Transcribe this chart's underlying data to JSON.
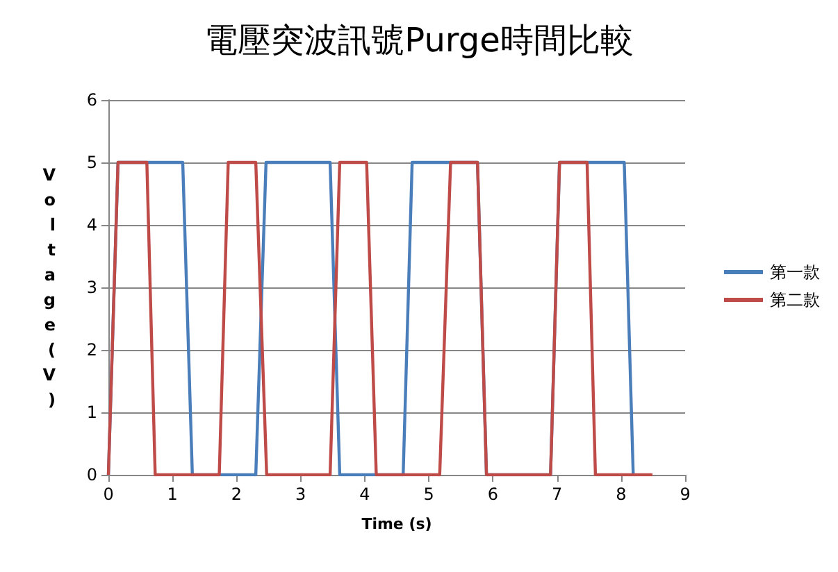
{
  "chart_data": {
    "type": "line",
    "title": "電壓突波訊號Purge時間比較",
    "xlabel": "Time (s)",
    "ylabel": "Voltage(V)",
    "xlim": [
      0,
      9
    ],
    "xticks": [
      0,
      1,
      2,
      3,
      4,
      5,
      6,
      7,
      8,
      9
    ],
    "ylim": [
      0,
      6
    ],
    "yticks": [
      0,
      1,
      2,
      3,
      4,
      5,
      6
    ],
    "grid": "y",
    "legend": "right",
    "marker": "none",
    "line_style": "solid",
    "series": [
      {
        "name": "第一款",
        "color": "#4a7ebb",
        "x": [
          0,
          0.15,
          1.16,
          1.31,
          2.3,
          2.46,
          3.46,
          3.61,
          4.6,
          4.74,
          5.76,
          5.9,
          6.9,
          7.04,
          8.05,
          8.19
        ],
        "values": [
          0,
          5,
          5,
          0,
          0,
          5,
          5,
          0,
          0,
          5,
          5,
          0,
          0,
          5,
          5,
          0
        ]
      },
      {
        "name": "第二款",
        "color": "#be4b48",
        "x": [
          0,
          0.15,
          0.6,
          0.73,
          1.73,
          1.87,
          2.3,
          2.47,
          3.46,
          3.61,
          4.03,
          4.18,
          5.17,
          5.34,
          5.76,
          5.9,
          6.9,
          7.04,
          7.47,
          7.6,
          8.49
        ],
        "values": [
          0,
          5,
          5,
          0,
          0,
          5,
          5,
          0,
          0,
          5,
          5,
          0,
          0,
          5,
          5,
          0,
          0,
          5,
          5,
          0,
          0
        ]
      }
    ]
  }
}
